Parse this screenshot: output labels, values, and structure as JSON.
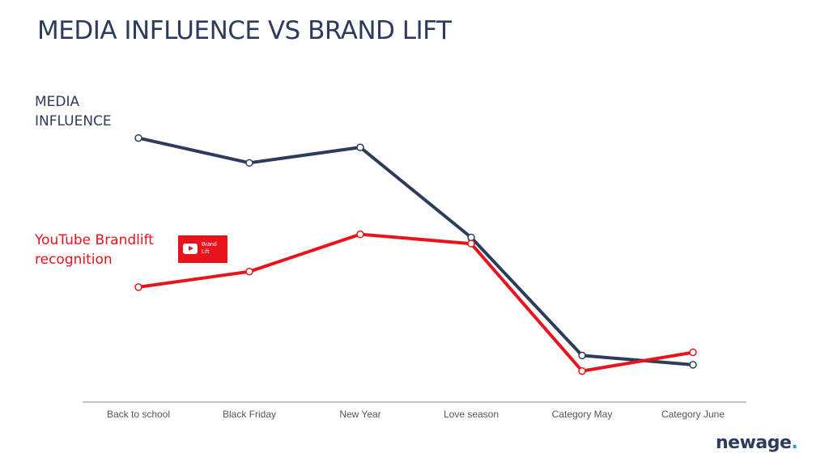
{
  "slide": {
    "title": "MEDIA INFLUENCE VS BRAND LIFT",
    "logo": {
      "text": "newage",
      "dot": "."
    }
  },
  "colors": {
    "media": "#2d3c5c",
    "youtube": "#e8131c",
    "axis": "#b0b0b0"
  },
  "labels": {
    "media": [
      "MEDIA",
      "INFLUENCE"
    ],
    "youtube": [
      "YouTube Brandlift",
      "recognition"
    ],
    "badge": [
      "Brand",
      "Lift"
    ],
    "badge_icon": "youtube-play-icon"
  },
  "chart_data": {
    "type": "line",
    "title": "MEDIA INFLUENCE VS BRAND LIFT",
    "categories": [
      "Back to school",
      "Black Friday",
      "New Year",
      "Love season",
      "Category May",
      "Category June"
    ],
    "series": [
      {
        "name": "MEDIA INFLUENCE",
        "color": "#2d3c5c",
        "values": [
          85,
          77,
          82,
          53,
          15,
          12
        ]
      },
      {
        "name": "YouTube Brandlift recognition",
        "color": "#e8131c",
        "values": [
          37,
          42,
          54,
          51,
          10,
          16
        ]
      }
    ],
    "ylim": [
      0,
      100
    ],
    "grid": false,
    "legend": "left, inline labels"
  }
}
